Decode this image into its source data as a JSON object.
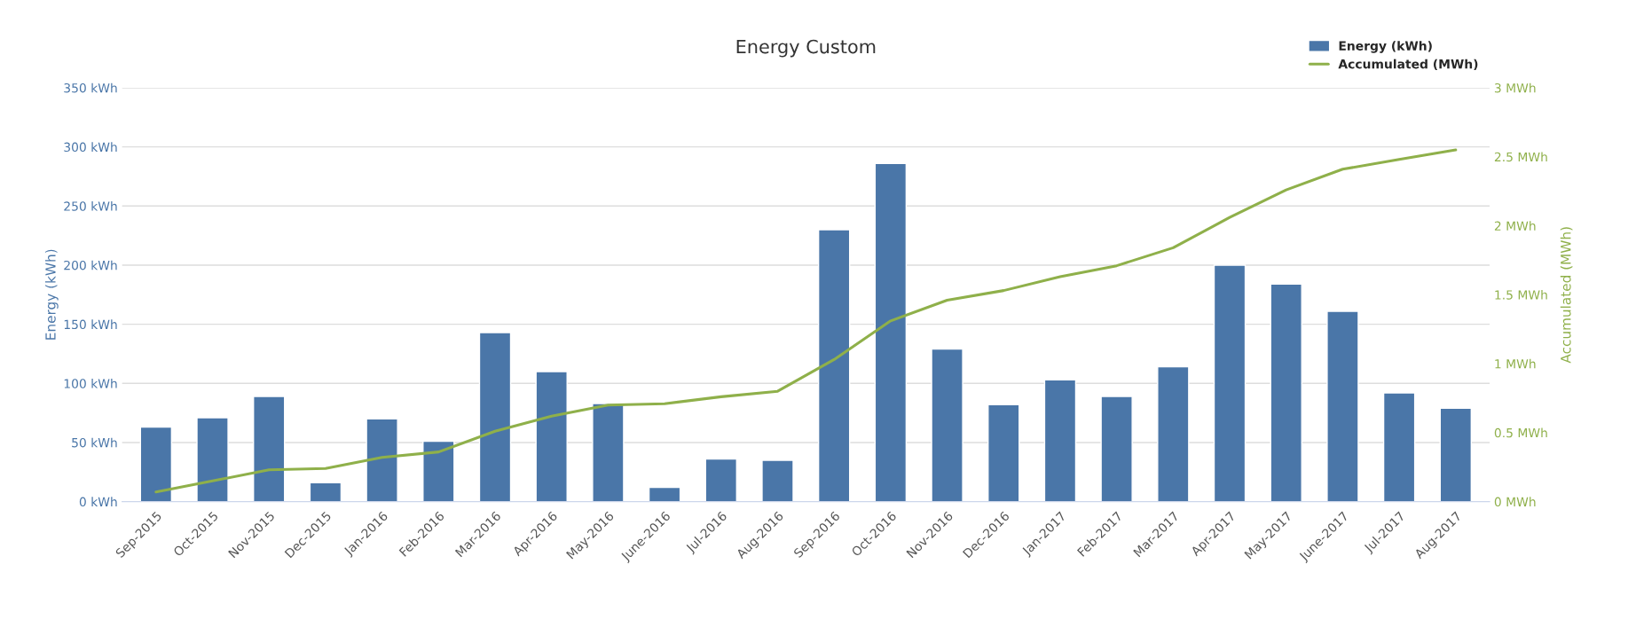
{
  "chart_data": {
    "type": "bar",
    "title": "Energy Custom",
    "ylabel": "Energy (kWh)",
    "y2label": "Accumulated (MWh)",
    "categories": [
      "Sep-2015",
      "Oct-2015",
      "Nov-2015",
      "Dec-2015",
      "Jan-2016",
      "Feb-2016",
      "Mar-2016",
      "Apr-2016",
      "May-2016",
      "June-2016",
      "Jul-2016",
      "Aug-2016",
      "Sep-2016",
      "Oct-2016",
      "Nov-2016",
      "Dec-2016",
      "Jan-2017",
      "Feb-2017",
      "Mar-2017",
      "Apr-2017",
      "May-2017",
      "June-2017",
      "Jul-2017",
      "Aug-2017"
    ],
    "series": [
      {
        "name": "Energy (kWh)",
        "color": "#4a76a8",
        "values": [
          63,
          71,
          89,
          16,
          70,
          51,
          143,
          110,
          83,
          12,
          36,
          35,
          230,
          286,
          129,
          82,
          103,
          89,
          114,
          200,
          184,
          161,
          92,
          79
        ]
      },
      {
        "name": "Accumulated (MWh)",
        "type": "line",
        "axis": "y2",
        "color": "#8fb04a",
        "values": [
          0.07,
          0.15,
          0.23,
          0.24,
          0.32,
          0.36,
          0.51,
          0.62,
          0.7,
          0.71,
          0.76,
          0.8,
          1.03,
          1.31,
          1.46,
          1.53,
          1.63,
          1.71,
          1.84,
          2.06,
          2.26,
          2.41,
          2.48,
          2.55
        ]
      }
    ],
    "ylim": [
      0,
      350
    ],
    "yticks": [
      {
        "value": 0,
        "label": "0 kWh"
      },
      {
        "value": 50,
        "label": "50 kWh"
      },
      {
        "value": 100,
        "label": "100 kWh"
      },
      {
        "value": 150,
        "label": "150 kWh"
      },
      {
        "value": 200,
        "label": "200 kWh"
      },
      {
        "value": 250,
        "label": "250 kWh"
      },
      {
        "value": 300,
        "label": "300 kWh"
      },
      {
        "value": 350,
        "label": "350 kWh"
      }
    ],
    "y2lim": [
      0,
      3
    ],
    "y2ticks": [
      {
        "value": 0,
        "label": "0 MWh"
      },
      {
        "value": 0.5,
        "label": "0.5 MWh"
      },
      {
        "value": 1,
        "label": "1 MWh"
      },
      {
        "value": 1.5,
        "label": "1.5 MWh"
      },
      {
        "value": 2,
        "label": "2 MWh"
      },
      {
        "value": 2.5,
        "label": "2.5 MWh"
      },
      {
        "value": 3,
        "label": "3 MWh"
      }
    ],
    "grid": "y",
    "legend": "top right",
    "marker": "none",
    "line_style": "solid"
  }
}
